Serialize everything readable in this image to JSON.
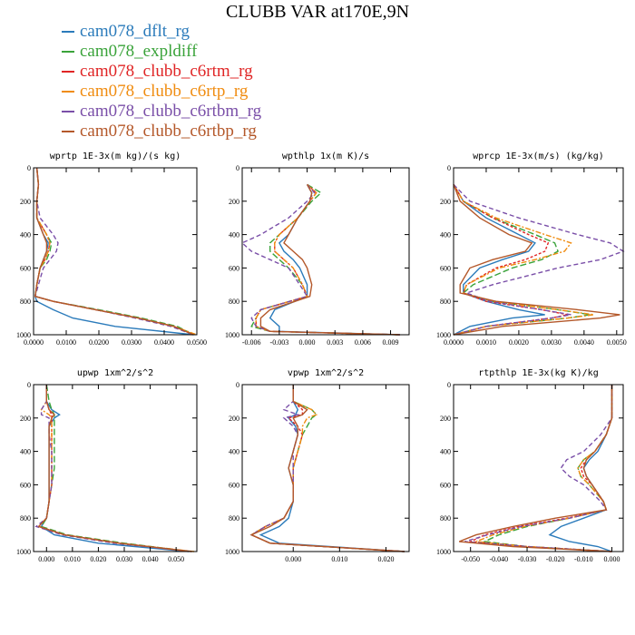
{
  "title": "CLUBB VAR at170E,9N",
  "legend": [
    {
      "name": "cam078_dflt_rg",
      "color": "#2b7bbb"
    },
    {
      "name": "cam078_expldiff",
      "color": "#3aa33a"
    },
    {
      "name": "cam078_clubb_c6rtm_rg",
      "color": "#e02525"
    },
    {
      "name": "cam078_clubb_c6rtp_rg",
      "color": "#f08c10"
    },
    {
      "name": "cam078_clubb_c6rtbm_rg",
      "color": "#7a4fa8"
    },
    {
      "name": "cam078_clubb_c6rtbp_rg",
      "color": "#b4582a"
    }
  ],
  "chart_data": [
    {
      "type": "line",
      "title": "wprtp  1E-3x(m kg)/(s kg)",
      "xlim": [
        0,
        0.05
      ],
      "ylim": [
        1000,
        0
      ],
      "xticks": [
        "0.0000",
        "0.0100",
        "0.0200",
        "0.0300",
        "0.0400",
        "0.0500"
      ],
      "yticks": [
        "0",
        "200",
        "400",
        "600",
        "800",
        "1000"
      ],
      "y": [
        0,
        100,
        200,
        300,
        400,
        450,
        500,
        550,
        600,
        700,
        770,
        800,
        850,
        900,
        950,
        1000
      ],
      "series": [
        {
          "values": [
            0.001,
            0.0015,
            0.001,
            0.001,
            0.003,
            0.0045,
            0.004,
            0.003,
            0.002,
            0.001,
            0.0005,
            0.001,
            0.006,
            0.012,
            0.025,
            0.049
          ]
        },
        {
          "values": [
            0.001,
            0.0015,
            0.001,
            0.001,
            0.004,
            0.0055,
            0.005,
            0.004,
            0.002,
            0.001,
            0.0005,
            0.006,
            0.02,
            0.033,
            0.044,
            0.049
          ]
        },
        {
          "values": [
            0.001,
            0.0015,
            0.001,
            0.001,
            0.004,
            0.005,
            0.0045,
            0.0035,
            0.002,
            0.001,
            0.0005,
            0.006,
            0.019,
            0.032,
            0.043,
            0.049
          ]
        },
        {
          "values": [
            0.001,
            0.0015,
            0.001,
            0.001,
            0.004,
            0.005,
            0.0045,
            0.0035,
            0.002,
            0.001,
            0.0005,
            0.006,
            0.019,
            0.032,
            0.043,
            0.05
          ]
        },
        {
          "values": [
            0.001,
            0.0015,
            0.001,
            0.002,
            0.006,
            0.0075,
            0.007,
            0.005,
            0.003,
            0.0015,
            0.0005,
            0.006,
            0.019,
            0.031,
            0.042,
            0.049
          ]
        },
        {
          "values": [
            0.001,
            0.0015,
            0.001,
            0.001,
            0.003,
            0.004,
            0.004,
            0.003,
            0.002,
            0.001,
            0.0005,
            0.006,
            0.019,
            0.032,
            0.043,
            0.049
          ]
        }
      ]
    },
    {
      "type": "line",
      "title": "wpthlp  1x(m K)/s",
      "xlim": [
        -0.007,
        0.011
      ],
      "ylim": [
        1000,
        0
      ],
      "xticks": [
        "-0.006",
        "-0.003",
        "0.000",
        "0.003",
        "0.006",
        "0.009"
      ],
      "xtick_values": [
        -0.006,
        -0.003,
        0,
        0.003,
        0.006,
        0.009
      ],
      "yticks": [
        "0",
        "200",
        "400",
        "600",
        "800",
        "1000"
      ],
      "y": [
        100,
        150,
        200,
        300,
        400,
        450,
        500,
        550,
        600,
        700,
        770,
        850,
        900,
        950,
        980,
        1000
      ],
      "series": [
        {
          "values": [
            0,
            0.0005,
            0.0003,
            -0.001,
            -0.002,
            -0.003,
            -0.0025,
            -0.0015,
            -0.0008,
            0,
            0,
            -0.0035,
            -0.004,
            -0.003,
            -0.003,
            0.01
          ]
        },
        {
          "values": [
            0,
            0.0015,
            0.0005,
            -0.001,
            -0.003,
            -0.004,
            -0.004,
            -0.003,
            -0.002,
            -0.0005,
            0,
            -0.005,
            -0.0055,
            -0.006,
            -0.004,
            0.01
          ]
        },
        {
          "values": [
            0,
            0.001,
            0.0003,
            -0.001,
            -0.003,
            -0.0035,
            -0.0035,
            -0.0025,
            -0.0015,
            -0.0005,
            0,
            -0.005,
            -0.0055,
            -0.0055,
            -0.004,
            0.01
          ]
        },
        {
          "values": [
            0,
            0.001,
            0.0003,
            -0.001,
            -0.003,
            -0.0035,
            -0.0035,
            -0.0025,
            -0.0015,
            -0.0005,
            0,
            -0.005,
            -0.0055,
            -0.0055,
            -0.004,
            0.01
          ]
        },
        {
          "values": [
            0,
            0.0008,
            0,
            -0.002,
            -0.005,
            -0.007,
            -0.006,
            -0.004,
            -0.002,
            -0.0008,
            0,
            -0.005,
            -0.006,
            -0.0055,
            -0.004,
            0.01
          ]
        },
        {
          "values": [
            0,
            0.0005,
            0.0003,
            -0.001,
            -0.002,
            -0.0025,
            -0.0015,
            -0.0005,
            0,
            0.0005,
            0.0003,
            -0.004,
            -0.005,
            -0.005,
            -0.004,
            0.01
          ]
        }
      ]
    },
    {
      "type": "line",
      "title": "wprcp  1E-3x(m/s) (kg/kg)",
      "xlim": [
        0,
        0.0052
      ],
      "ylim": [
        1000,
        0
      ],
      "xticks": [
        "0.0000",
        "0.0010",
        "0.0020",
        "0.0030",
        "0.0040",
        "0.0050"
      ],
      "yticks": [
        "0",
        "200",
        "400",
        "600",
        "800",
        "1000"
      ],
      "y": [
        100,
        200,
        300,
        400,
        450,
        500,
        550,
        600,
        700,
        750,
        800,
        850,
        880,
        900,
        950,
        1000
      ],
      "series": [
        {
          "values": [
            0,
            0.0003,
            0.001,
            0.002,
            0.0025,
            0.0023,
            0.0015,
            0.0008,
            0.0003,
            0.0003,
            0.001,
            0.002,
            0.0028,
            0.0018,
            0.0005,
            0
          ]
        },
        {
          "values": [
            0,
            0.0003,
            0.0012,
            0.0025,
            0.0031,
            0.0032,
            0.0027,
            0.0018,
            0.0006,
            0.0003,
            0.0012,
            0.0032,
            0.0042,
            0.0035,
            0.001,
            0
          ]
        },
        {
          "values": [
            0,
            0.0003,
            0.0012,
            0.0023,
            0.0029,
            0.0028,
            0.0022,
            0.0013,
            0.0004,
            0.0003,
            0.001,
            0.0027,
            0.0035,
            0.003,
            0.001,
            0
          ]
        },
        {
          "values": [
            0,
            0.0003,
            0.0013,
            0.0028,
            0.0036,
            0.0034,
            0.0025,
            0.0014,
            0.0004,
            0.0003,
            0.0012,
            0.0032,
            0.0043,
            0.0035,
            0.001,
            0
          ]
        },
        {
          "values": [
            0,
            0.0005,
            0.002,
            0.0038,
            0.0048,
            0.0052,
            0.0045,
            0.0032,
            0.0012,
            0.0004,
            0.0011,
            0.0027,
            0.0036,
            0.003,
            0.001,
            0
          ]
        },
        {
          "values": [
            0,
            0.0002,
            0.0008,
            0.0017,
            0.0024,
            0.0022,
            0.0012,
            0.0005,
            0.0002,
            0.0002,
            0.0013,
            0.0038,
            0.0051,
            0.0045,
            0.0015,
            0
          ]
        }
      ]
    },
    {
      "type": "line",
      "title": "upwp  1xm^2/s^2",
      "xlim": [
        -0.005,
        0.058
      ],
      "ylim": [
        1000,
        0
      ],
      "xticks": [
        "0.000",
        "0.010",
        "0.020",
        "0.030",
        "0.040",
        "0.050"
      ],
      "xtick_values": [
        0,
        0.01,
        0.02,
        0.03,
        0.04,
        0.05
      ],
      "yticks": [
        "0",
        "200",
        "400",
        "600",
        "800",
        "1000"
      ],
      "y": [
        0,
        100,
        150,
        180,
        200,
        250,
        300,
        400,
        500,
        600,
        700,
        800,
        850,
        900,
        950,
        1000
      ],
      "series": [
        {
          "values": [
            0,
            0,
            0.002,
            0.005,
            0.003,
            0.001,
            0.001,
            0.001,
            0.001,
            0.001,
            0.001,
            0,
            -0.002,
            0.003,
            0.02,
            0.055
          ]
        },
        {
          "values": [
            0,
            0.001,
            0.002,
            0.003,
            0.003,
            0.003,
            0.003,
            0.003,
            0.003,
            0.002,
            0.001,
            0,
            -0.002,
            0.008,
            0.03,
            0.056
          ]
        },
        {
          "values": [
            0,
            0,
            0.001,
            0.002,
            0.002,
            0.002,
            0.002,
            0.002,
            0.002,
            0.002,
            0.001,
            0,
            -0.003,
            0.007,
            0.028,
            0.056
          ]
        },
        {
          "values": [
            0,
            0,
            -0.002,
            0.001,
            0.002,
            0.002,
            0.002,
            0.002,
            0.002,
            0.002,
            0.001,
            0,
            -0.003,
            0.007,
            0.028,
            0.057
          ]
        },
        {
          "values": [
            0,
            0,
            -0.002,
            -0.002,
            0.001,
            0.001,
            0.001,
            0.002,
            0.002,
            0.002,
            0.001,
            0,
            -0.004,
            0.006,
            0.026,
            0.056
          ]
        },
        {
          "values": [
            0,
            0,
            0.001,
            0.003,
            0.002,
            0.001,
            0.001,
            0.001,
            0.001,
            0.001,
            0.001,
            0,
            -0.003,
            0.007,
            0.028,
            0.056
          ]
        }
      ]
    },
    {
      "type": "line",
      "title": "vpwp  1xm^2/s^2",
      "xlim": [
        -0.011,
        0.025
      ],
      "ylim": [
        1000,
        0
      ],
      "xticks": [
        "0.000",
        "0.010",
        "0.020"
      ],
      "xtick_values": [
        0,
        0.01,
        0.02
      ],
      "yticks": [
        "0",
        "200",
        "400",
        "600",
        "800",
        "1000"
      ],
      "y": [
        0,
        100,
        150,
        180,
        200,
        250,
        300,
        400,
        500,
        600,
        700,
        800,
        850,
        900,
        950,
        1000
      ],
      "series": [
        {
          "values": [
            0,
            0,
            0.001,
            0.0005,
            -0.001,
            0.0005,
            0.001,
            0,
            -0.001,
            0,
            0,
            -0.001,
            -0.003,
            -0.007,
            -0.003,
            0.024
          ]
        },
        {
          "values": [
            0,
            0,
            0.004,
            0.005,
            0.004,
            0.003,
            0.002,
            0.001,
            0,
            0,
            0,
            -0.002,
            -0.006,
            -0.009,
            -0.005,
            0.024
          ]
        },
        {
          "values": [
            0,
            0,
            0.002,
            0.002,
            -0.001,
            0.001,
            0.002,
            0.001,
            0,
            0,
            0,
            -0.002,
            -0.006,
            -0.009,
            -0.005,
            0.024
          ]
        },
        {
          "values": [
            0,
            0,
            0.004,
            0.005,
            0.003,
            0.002,
            0.002,
            0.001,
            0,
            0,
            0,
            -0.002,
            -0.006,
            -0.009,
            -0.005,
            0.024
          ]
        },
        {
          "values": [
            0,
            0,
            -0.002,
            0.001,
            -0.002,
            0,
            0.001,
            0,
            0,
            0,
            0,
            -0.002,
            -0.006,
            -0.009,
            -0.005,
            0.024
          ]
        },
        {
          "values": [
            0,
            0,
            0.003,
            0.002,
            0,
            0.001,
            0.001,
            0,
            -0.001,
            0,
            0,
            -0.002,
            -0.005,
            -0.009,
            -0.005,
            0.024
          ]
        }
      ]
    },
    {
      "type": "line",
      "title": "rtpthlp  1E-3x(kg K)/kg",
      "xlim": [
        -0.056,
        0.004
      ],
      "ylim": [
        1000,
        0
      ],
      "xticks": [
        "-0.050",
        "-0.040",
        "-0.030",
        "-0.020",
        "-0.010",
        "0.000"
      ],
      "xtick_values": [
        -0.05,
        -0.04,
        -0.03,
        -0.02,
        -0.01,
        0
      ],
      "yticks": [
        "0",
        "200",
        "400",
        "600",
        "800",
        "1000"
      ],
      "y": [
        0,
        200,
        300,
        400,
        450,
        500,
        550,
        600,
        700,
        750,
        800,
        850,
        900,
        940,
        970,
        1000
      ],
      "series": [
        {
          "values": [
            0,
            0,
            -0.002,
            -0.005,
            -0.008,
            -0.01,
            -0.009,
            -0.007,
            -0.003,
            -0.002,
            -0.01,
            -0.018,
            -0.022,
            -0.015,
            -0.005,
            0
          ]
        },
        {
          "values": [
            0,
            0,
            -0.002,
            -0.006,
            -0.01,
            -0.012,
            -0.011,
            -0.008,
            -0.003,
            -0.002,
            -0.015,
            -0.03,
            -0.04,
            -0.045,
            -0.03,
            0
          ]
        },
        {
          "values": [
            0,
            0,
            -0.002,
            -0.006,
            -0.009,
            -0.011,
            -0.01,
            -0.007,
            -0.003,
            -0.002,
            -0.016,
            -0.033,
            -0.045,
            -0.05,
            -0.03,
            0
          ]
        },
        {
          "values": [
            0,
            0,
            -0.002,
            -0.006,
            -0.01,
            -0.012,
            -0.011,
            -0.008,
            -0.003,
            -0.002,
            -0.015,
            -0.031,
            -0.042,
            -0.048,
            -0.03,
            0
          ]
        },
        {
          "values": [
            0,
            0,
            -0.004,
            -0.01,
            -0.016,
            -0.018,
            -0.015,
            -0.01,
            -0.004,
            -0.002,
            -0.015,
            -0.032,
            -0.044,
            -0.052,
            -0.03,
            0
          ]
        },
        {
          "values": [
            0,
            0,
            -0.002,
            -0.006,
            -0.009,
            -0.01,
            -0.009,
            -0.007,
            -0.003,
            -0.002,
            -0.02,
            -0.035,
            -0.048,
            -0.054,
            -0.035,
            0
          ]
        }
      ]
    }
  ]
}
